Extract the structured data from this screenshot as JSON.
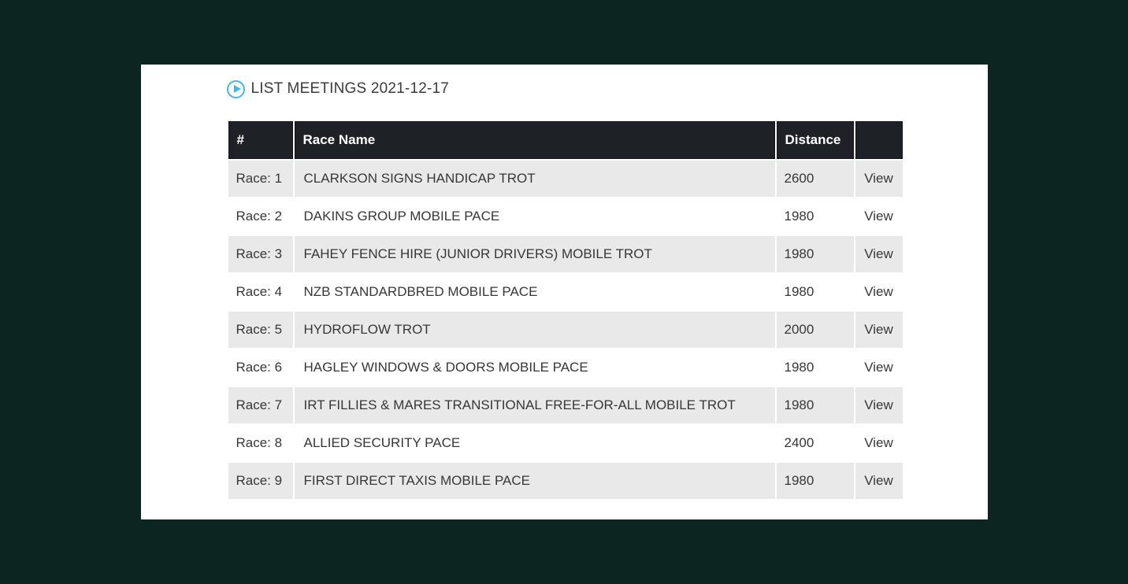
{
  "page": {
    "background_color": "#0c2520",
    "panel_color": "#ffffff"
  },
  "header": {
    "title": "LIST MEETINGS 2021-12-17",
    "icon": "play-circle-icon",
    "icon_color": "#47b5e8"
  },
  "table": {
    "header_bg": "#1e2227",
    "stripe_color": "#e9e9e9",
    "columns": {
      "num": "#",
      "name": "Race Name",
      "distance": "Distance",
      "action": ""
    },
    "rows": [
      {
        "race": "Race: 1",
        "name": "CLARKSON SIGNS HANDICAP TROT",
        "distance": "2600",
        "action": "View"
      },
      {
        "race": "Race: 2",
        "name": "DAKINS GROUP MOBILE PACE",
        "distance": "1980",
        "action": "View"
      },
      {
        "race": "Race: 3",
        "name": "FAHEY FENCE HIRE (JUNIOR DRIVERS) MOBILE TROT",
        "distance": "1980",
        "action": "View"
      },
      {
        "race": "Race: 4",
        "name": "NZB STANDARDBRED MOBILE PACE",
        "distance": "1980",
        "action": "View"
      },
      {
        "race": "Race: 5",
        "name": "HYDROFLOW TROT",
        "distance": "2000",
        "action": "View"
      },
      {
        "race": "Race: 6",
        "name": "HAGLEY WINDOWS & DOORS MOBILE PACE",
        "distance": "1980",
        "action": "View"
      },
      {
        "race": "Race: 7",
        "name": "IRT FILLIES & MARES TRANSITIONAL FREE-FOR-ALL MOBILE TROT",
        "distance": "1980",
        "action": "View"
      },
      {
        "race": "Race: 8",
        "name": "ALLIED SECURITY PACE",
        "distance": "2400",
        "action": "View"
      },
      {
        "race": "Race: 9",
        "name": "FIRST DIRECT TAXIS MOBILE PACE",
        "distance": "1980",
        "action": "View"
      }
    ]
  }
}
